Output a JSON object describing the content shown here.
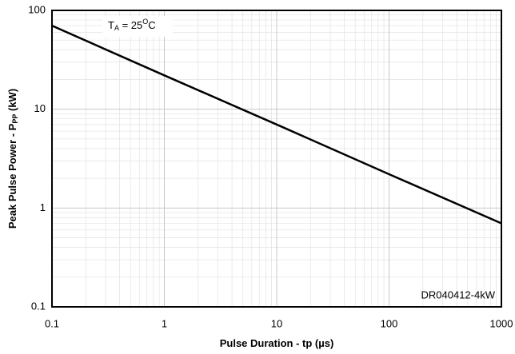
{
  "chart_data": {
    "type": "line",
    "log_x": true,
    "log_y": true,
    "grid": true,
    "x_label": [
      {
        "text": "Pulse Duration - tp (µs)"
      }
    ],
    "y_label": [
      {
        "text": "Peak Pulse Power - P"
      },
      {
        "text": "PP",
        "shift": "sub"
      },
      {
        "text": " (kW)"
      }
    ],
    "annotation": [
      {
        "text": "T"
      },
      {
        "text": "A",
        "shift": "sub"
      },
      {
        "text": " = 25"
      },
      {
        "text": "O",
        "shift": "super"
      },
      {
        "text": "C"
      }
    ],
    "note": "DR040412-4kW",
    "x": [
      0.1,
      1,
      10,
      100,
      1000
    ],
    "series": [
      {
        "color": "#000000",
        "values": [
          70,
          22,
          7,
          2.2,
          0.7
        ]
      }
    ],
    "xlim": [
      0.1,
      1000
    ],
    "xticks": [
      0.1,
      1,
      10,
      100,
      1000
    ],
    "ylim": [
      0.1,
      100
    ],
    "yticks": [
      0.1,
      1,
      10,
      100
    ]
  }
}
